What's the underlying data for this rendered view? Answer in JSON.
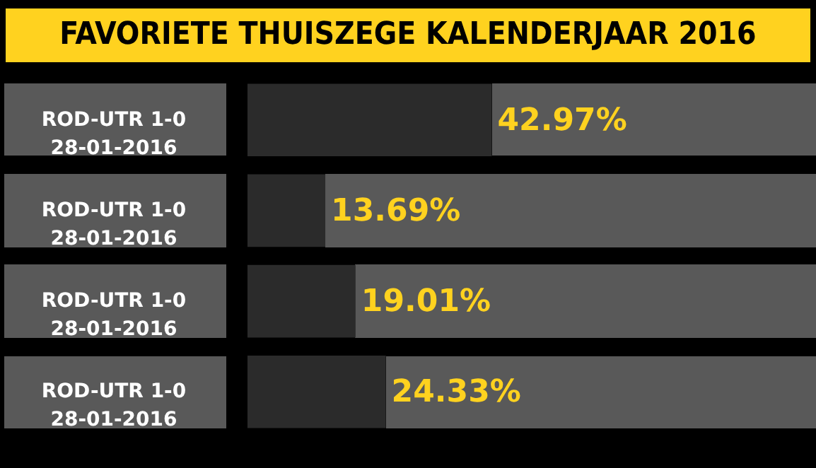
{
  "chart_data": {
    "type": "bar",
    "orientation": "horizontal",
    "title": "FAVORIETE THUISZEGE KALENDERJAAR 2016",
    "categories": [
      "ROD-UTR 1-0\n28-01-2016",
      "ROD-UTR 1-0\n28-01-2016",
      "ROD-UTR 1-0\n28-01-2016",
      "ROD-UTR 1-0\n28-01-2016"
    ],
    "values": [
      42.97,
      13.69,
      19.01,
      24.33
    ],
    "value_labels": [
      "42.97%",
      "13.69%",
      "19.01%",
      "24.33%"
    ],
    "color": "#2b2b2b",
    "xlim": [
      0,
      100
    ],
    "tick_labels": "y"
  }
}
